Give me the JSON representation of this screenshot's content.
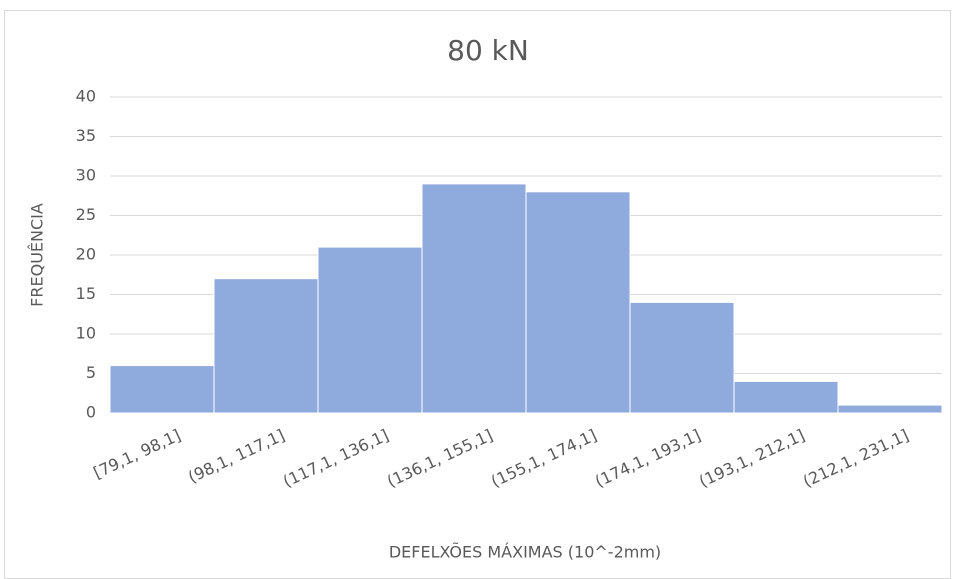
{
  "chart_data": {
    "type": "bar",
    "title": "80 kN",
    "x_label": "DEFELXÕES MÁXIMAS (10^-2mm)",
    "y_label": "FREQUÊNCIA",
    "categories": [
      "[79,1, 98,1]",
      "(98,1, 117,1]",
      "(117,1, 136,1]",
      "(136,1, 155,1]",
      "(155,1, 174,1]",
      "(174,1, 193,1]",
      "(193,1, 212,1]",
      "(212,1, 231,1]"
    ],
    "values": [
      6,
      17,
      21,
      29,
      28,
      14,
      4,
      1
    ],
    "color": "#8faadc",
    "ylim": [
      0,
      40
    ],
    "yticks": [
      0,
      5,
      10,
      15,
      20,
      25,
      30,
      35,
      40
    ],
    "grid": true
  }
}
